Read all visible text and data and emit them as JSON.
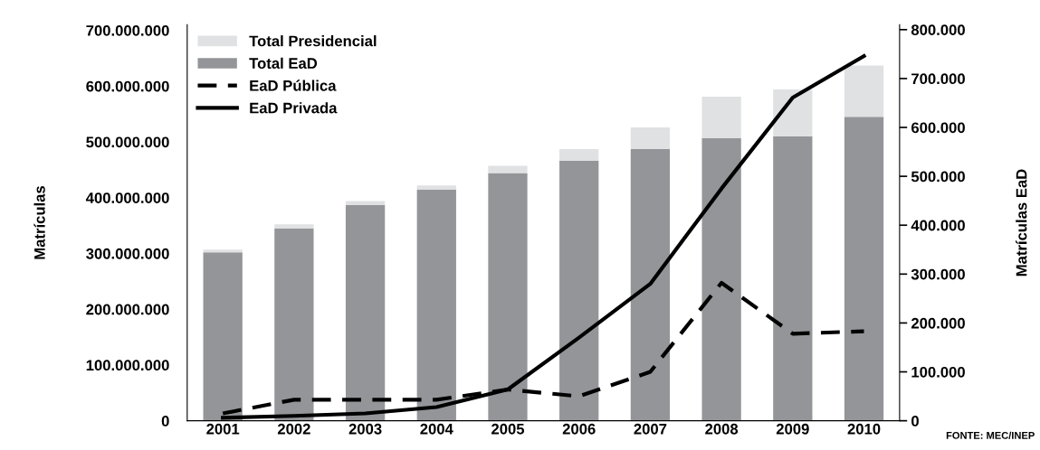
{
  "chart_data": {
    "type": "bar",
    "stacked": true,
    "categories": [
      "2001",
      "2002",
      "2003",
      "2004",
      "2005",
      "2006",
      "2007",
      "2008",
      "2009",
      "2010"
    ],
    "series": [
      {
        "name": "Total EaD",
        "color": "#939598",
        "values": [
          302000000,
          345000000,
          387000000,
          414000000,
          444000000,
          466000000,
          487000000,
          507000000,
          510000000,
          545000000
        ]
      },
      {
        "name": "Total Presidencial",
        "color": "#e0e1e3",
        "values": [
          5000000,
          7000000,
          7000000,
          8000000,
          13000000,
          21000000,
          39000000,
          74000000,
          84000000,
          92000000
        ]
      },
      {
        "name": "EaD Pública",
        "type": "line",
        "axis": "y2",
        "line_style": "dashed",
        "color": "#000000",
        "values": [
          15000,
          43000,
          43000,
          43000,
          64000,
          50000,
          100000,
          282000,
          178000,
          183000
        ]
      },
      {
        "name": "EaD Privada",
        "type": "line",
        "axis": "y2",
        "line_style": "solid",
        "color": "#000000",
        "values": [
          6000,
          10000,
          15000,
          28000,
          64000,
          170000,
          280000,
          475000,
          661000,
          746000
        ]
      }
    ],
    "ylabel": "Matrículas",
    "y2label": "Matrículas EaD",
    "ylim": [
      0,
      710000000
    ],
    "yticks": [
      {
        "value": 0,
        "label": "0"
      },
      {
        "value": 100000000,
        "label": "100.000.000"
      },
      {
        "value": 200000000,
        "label": "200.000.000"
      },
      {
        "value": 300000000,
        "label": "300.000.000"
      },
      {
        "value": 400000000,
        "label": "400.000.000"
      },
      {
        "value": 500000000,
        "label": "500.000.000"
      },
      {
        "value": 600000000,
        "label": "600.000.000"
      },
      {
        "value": 700000000,
        "label": "700.000.000"
      }
    ],
    "y2lim": [
      0,
      810000
    ],
    "y2ticks": [
      {
        "value": 0,
        "label": "0"
      },
      {
        "value": 100000,
        "label": "100.000"
      },
      {
        "value": 200000,
        "label": "200.000"
      },
      {
        "value": 300000,
        "label": "300.000"
      },
      {
        "value": 400000,
        "label": "400.000"
      },
      {
        "value": 500000,
        "label": "500.000"
      },
      {
        "value": 600000,
        "label": "600.000"
      },
      {
        "value": 700000,
        "label": "700.000"
      },
      {
        "value": 800000,
        "label": "800.000"
      }
    ],
    "legend": "top left",
    "grid": false,
    "marker": "none",
    "annotations": [
      "FONTE: MEC/INEP"
    ]
  }
}
